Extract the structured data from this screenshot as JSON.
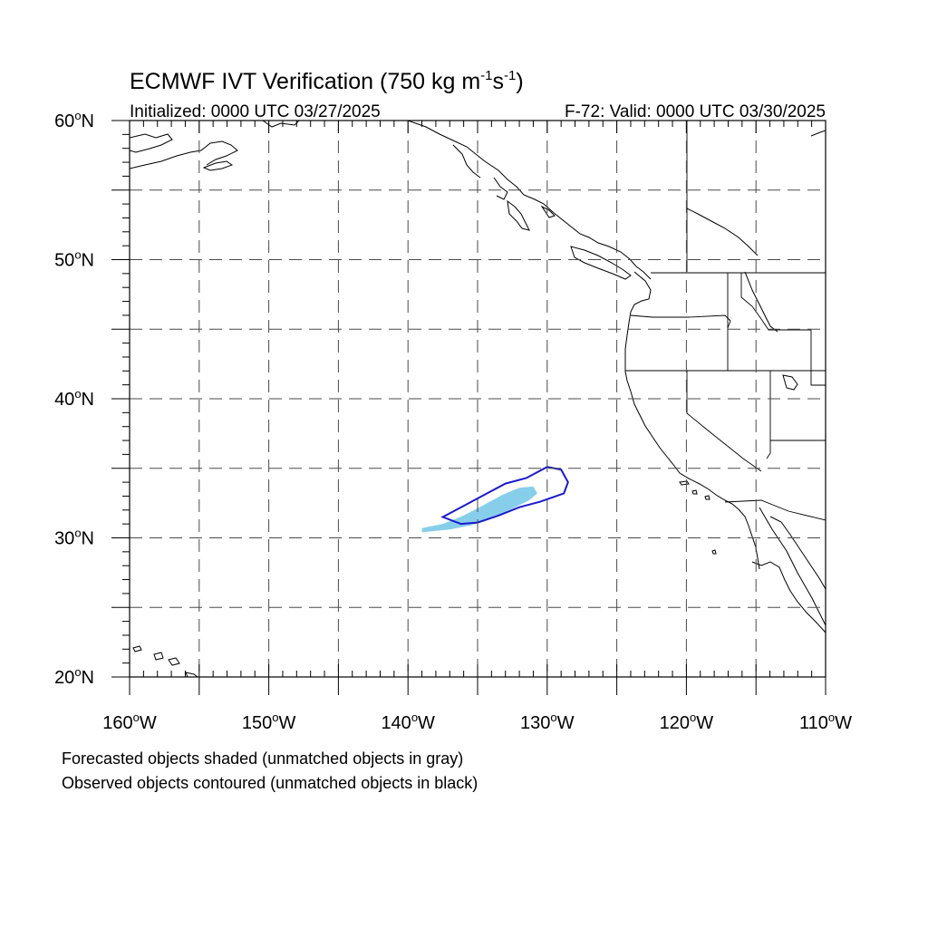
{
  "title": {
    "main": "ECMWF IVT Verification (750 kg m",
    "sup1": "-1",
    "mid": "s",
    "sup2": "-1",
    "end": ")"
  },
  "subtitle": {
    "initialized": "Initialized: 0000 UTC 03/27/2025",
    "valid": "F-72: Valid: 0000 UTC 03/30/2025"
  },
  "axes": {
    "lon_range": [
      -160,
      -110
    ],
    "lat_range": [
      20,
      60
    ],
    "lat_labels": [
      {
        "lat": 60,
        "text": "60",
        "deg": "o",
        "hemi": "N"
      },
      {
        "lat": 50,
        "text": "50",
        "deg": "o",
        "hemi": "N"
      },
      {
        "lat": 40,
        "text": "40",
        "deg": "o",
        "hemi": "N"
      },
      {
        "lat": 30,
        "text": "30",
        "deg": "o",
        "hemi": "N"
      },
      {
        "lat": 20,
        "text": "20",
        "deg": "o",
        "hemi": "N"
      }
    ],
    "lon_labels": [
      {
        "lon": -160,
        "text": "160",
        "deg": "o",
        "hemi": "W"
      },
      {
        "lon": -150,
        "text": "150",
        "deg": "o",
        "hemi": "W"
      },
      {
        "lon": -140,
        "text": "140",
        "deg": "o",
        "hemi": "W"
      },
      {
        "lon": -130,
        "text": "130",
        "deg": "o",
        "hemi": "W"
      },
      {
        "lon": -120,
        "text": "120",
        "deg": "o",
        "hemi": "W"
      },
      {
        "lon": -110,
        "text": "110",
        "deg": "o",
        "hemi": "W"
      }
    ],
    "grid_lons": [
      -155,
      -150,
      -145,
      -140,
      -135,
      -130,
      -125,
      -120,
      -115
    ],
    "grid_lats": [
      25,
      30,
      35,
      40,
      45,
      50,
      55
    ]
  },
  "objects": {
    "forecast_color": "#87ceeb",
    "observed_color": "#1a1acd",
    "forecast": [
      [
        -139.0,
        30.7
      ],
      [
        -137.5,
        31.0
      ],
      [
        -136.0,
        31.6
      ],
      [
        -134.5,
        32.4
      ],
      [
        -133.2,
        33.1
      ],
      [
        -132.0,
        33.6
      ],
      [
        -131.0,
        33.7
      ],
      [
        -130.7,
        33.2
      ],
      [
        -131.3,
        32.7
      ],
      [
        -132.5,
        32.1
      ],
      [
        -134.0,
        31.4
      ],
      [
        -135.5,
        30.9
      ],
      [
        -137.0,
        30.6
      ],
      [
        -139.0,
        30.4
      ]
    ],
    "observed": [
      [
        -137.5,
        31.5
      ],
      [
        -136.0,
        32.3
      ],
      [
        -134.5,
        33.1
      ],
      [
        -133.0,
        33.9
      ],
      [
        -131.5,
        34.3
      ],
      [
        -130.0,
        35.1
      ],
      [
        -129.0,
        34.9
      ],
      [
        -128.5,
        34.0
      ],
      [
        -128.8,
        33.2
      ],
      [
        -130.5,
        32.6
      ],
      [
        -132.0,
        32.2
      ],
      [
        -133.5,
        31.6
      ],
      [
        -135.0,
        31.1
      ],
      [
        -136.2,
        31.0
      ],
      [
        -137.5,
        31.5
      ]
    ]
  },
  "footnotes": [
    "Forecasted objects shaded (unmatched objects in gray)",
    "Observed objects contoured (unmatched objects in black)"
  ]
}
